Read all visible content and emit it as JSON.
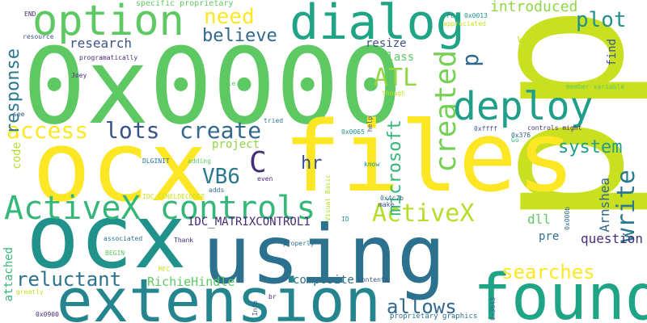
{
  "words": [
    {
      "text": "0x0000",
      "color": "#5ec962"
    },
    {
      "text": "pp",
      "color": "#c8e020"
    },
    {
      "text": "files",
      "color": "#fde725"
    },
    {
      "text": "ocx",
      "color": "#fde725"
    },
    {
      "text": "ocx",
      "color": "#21918c"
    },
    {
      "text": "using",
      "color": "#2c728e"
    },
    {
      "text": "extension",
      "color": "#25858e"
    },
    {
      "text": "found",
      "color": "#20a486"
    },
    {
      "text": "option",
      "color": "#5ec962"
    },
    {
      "text": "dialog",
      "color": "#20a486"
    },
    {
      "text": "deploy",
      "color": "#1f9e89"
    },
    {
      "text": "ActiveX controls",
      "color": "#35b779"
    },
    {
      "text": "access",
      "color": "#fde725"
    },
    {
      "text": "lots",
      "color": "#3b528b"
    },
    {
      "text": "create",
      "color": "#31688e"
    },
    {
      "text": "C",
      "color": "#472d7b"
    },
    {
      "text": "ATL",
      "color": "#90d743"
    },
    {
      "text": "ActiveX",
      "color": "#b5de2b"
    },
    {
      "text": "created",
      "color": "#75d054"
    },
    {
      "text": "write",
      "color": "#2a788e"
    },
    {
      "text": "p",
      "color": "#31688e"
    },
    {
      "text": "plot",
      "color": "#21918c"
    },
    {
      "text": "need",
      "color": "#fde725"
    },
    {
      "text": "believe",
      "color": "#31688e"
    },
    {
      "text": "system",
      "color": "#1f9e89"
    },
    {
      "text": "VB6",
      "color": "#2a788e"
    },
    {
      "text": "hr",
      "color": "#3b528b"
    },
    {
      "text": "reluctant",
      "color": "#2c728e"
    },
    {
      "text": "allows",
      "color": "#31688e"
    },
    {
      "text": "searches",
      "color": "#fde725"
    },
    {
      "text": "microsoft",
      "color": "#35b779"
    },
    {
      "text": "response",
      "color": "#2a788e"
    },
    {
      "text": "question",
      "color": "#472d7b"
    },
    {
      "text": "introduced",
      "color": "#8fd744"
    },
    {
      "text": "research",
      "color": "#3b528b"
    },
    {
      "text": "project",
      "color": "#8fd744"
    },
    {
      "text": "RichieHindle",
      "color": "#5ec962"
    },
    {
      "text": "composite",
      "color": "#2c728e"
    },
    {
      "text": "IDC_MATRIXCONTROL1",
      "color": "#482878"
    },
    {
      "text": "attached",
      "color": "#35b779"
    },
    {
      "text": "Arnshea",
      "color": "#31688e"
    },
    {
      "text": "dll",
      "color": "#5ec962"
    },
    {
      "text": "pre",
      "color": "#2c728e"
    },
    {
      "text": "class",
      "color": "#5ec962"
    },
    {
      "text": "resize",
      "color": "#3b528b"
    },
    {
      "text": "way",
      "color": "#c8e020"
    },
    {
      "text": "find",
      "color": "#3b528b"
    },
    {
      "text": "code",
      "color": "#b5de2b"
    },
    {
      "text": "specific proprietary",
      "color": "#5ec962"
    },
    {
      "text": "END",
      "color": "#482878"
    },
    {
      "text": "0x0013",
      "color": "#21918c"
    },
    {
      "text": "appreciated",
      "color": "#c8e020"
    },
    {
      "text": "resource",
      "color": "#3b528b"
    },
    {
      "text": "programatically",
      "color": "#482878"
    },
    {
      "text": "Joey",
      "color": "#472d7b"
    },
    {
      "text": "able",
      "color": "#5ec962"
    },
    {
      "text": "see",
      "color": "#3b528b"
    },
    {
      "text": "tried",
      "color": "#2a788e"
    },
    {
      "text": "though",
      "color": "#c8e020"
    },
    {
      "text": "member variable",
      "color": "#5ec962"
    },
    {
      "text": "0x0065",
      "color": "#21918c"
    },
    {
      "text": "0xffff",
      "color": "#3b528b"
    },
    {
      "text": "controls might",
      "color": "#472d7b"
    },
    {
      "text": "0x376",
      "color": "#31688e"
    },
    {
      "text": "Go",
      "color": "#35b779"
    },
    {
      "text": "DLGINIT",
      "color": "#2c728e"
    },
    {
      "text": "adding",
      "color": "#5ec962"
    },
    {
      "text": "know",
      "color": "#21918c"
    },
    {
      "text": "help",
      "color": "#3b528b"
    },
    {
      "text": "adds",
      "color": "#2c728e"
    },
    {
      "text": "even",
      "color": "#482878"
    },
    {
      "text": "IDC_LENELDECODER",
      "color": "#c8e020"
    },
    {
      "text": "Visual Basic",
      "color": "#b5de2b"
    },
    {
      "text": "make",
      "color": "#3b528b"
    },
    {
      "text": "0x4c7b",
      "color": "#31688e"
    },
    {
      "text": "ID",
      "color": "#21918c"
    },
    {
      "text": "0x000b",
      "color": "#31688e"
    },
    {
      "text": "associated",
      "color": "#2c728e"
    },
    {
      "text": "Thank",
      "color": "#472d7b"
    },
    {
      "text": "BEGIN",
      "color": "#5ec962"
    },
    {
      "text": "properly",
      "color": "#2c728e"
    },
    {
      "text": "MFC",
      "color": "#c8e020"
    },
    {
      "text": "contents",
      "color": "#3b528b"
    },
    {
      "text": "greatly",
      "color": "#c8e020"
    },
    {
      "text": "Info",
      "color": "#3b528b"
    },
    {
      "text": "br",
      "color": "#482878"
    },
    {
      "text": "0x0900",
      "color": "#482878"
    },
    {
      "text": "0x3643",
      "color": "#31688e"
    },
    {
      "text": "proprietary graphics",
      "color": "#2c728e"
    },
    {
      "text": "rc",
      "color": "#2c728e"
    }
  ]
}
